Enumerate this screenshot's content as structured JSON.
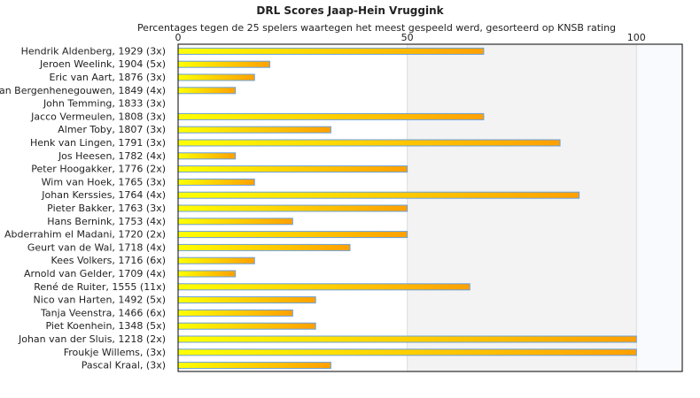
{
  "chart_data": {
    "type": "bar",
    "orientation": "horizontal",
    "title": "DRL Scores Jaap-Hein Vruggink",
    "subtitle": "Percentages tegen de 25 spelers waartegen het meest gespeeld werd, gesorteerd op KNSB rating",
    "xlim": [
      0,
      110
    ],
    "xticks": [
      0,
      50,
      100
    ],
    "categories": [
      "Hendrik Aldenberg, 1929 (3x)",
      "Jeroen Weelink, 1904 (5x)",
      "Eric van Aart, 1876 (3x)",
      "van Bergenhenegouwen, 1849 (4x)",
      "John Temming, 1833 (3x)",
      "Jacco Vermeulen, 1808 (3x)",
      "Almer Toby, 1807 (3x)",
      "Henk van Lingen, 1791 (3x)",
      "Jos Heesen, 1782 (4x)",
      "Peter Hoogakker, 1776 (2x)",
      "Wim van Hoek, 1765 (3x)",
      "Johan Kerssies, 1764 (4x)",
      "Pieter Bakker, 1763 (3x)",
      "Hans Bernink, 1753 (4x)",
      "Abderrahim el Madani, 1720 (2x)",
      "Geurt van de Wal, 1718 (4x)",
      "Kees Volkers, 1716 (6x)",
      "Arnold van Gelder, 1709 (4x)",
      "René de Ruiter, 1555 (11x)",
      "Nico van Harten, 1492 (5x)",
      "Tanja Veenstra, 1466 (6x)",
      "Piet Koenhein, 1348 (5x)",
      "Johan van der Sluis, 1218 (2x)",
      "Froukje Willems,  (3x)",
      "Pascal Kraal,  (3x)"
    ],
    "values": [
      66.67,
      20,
      16.67,
      12.5,
      0,
      66.67,
      33.33,
      83.33,
      12.5,
      50,
      16.67,
      87.5,
      50,
      25,
      50,
      37.5,
      16.67,
      12.5,
      63.64,
      30,
      25,
      30,
      100,
      100,
      33.33
    ],
    "colors": {
      "bar_start": "#ffff00",
      "bar_end": "#ffa000",
      "bar_border": "#6aa0dc",
      "band_mid": "#f3f3f3",
      "band_high": "#f8fafd"
    }
  }
}
